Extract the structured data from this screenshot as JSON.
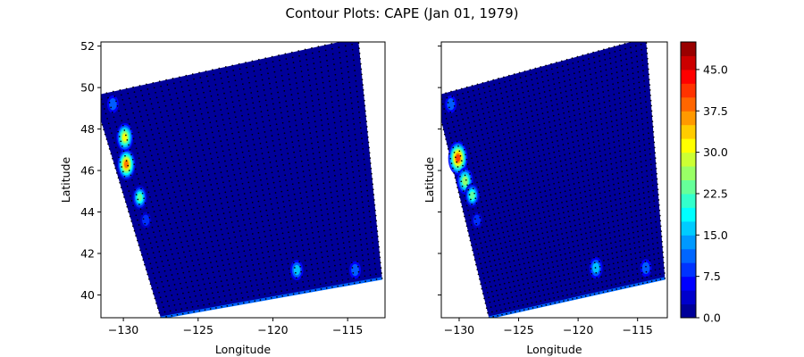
{
  "figure": {
    "title": "Contour Plots: CAPE (Jan 01, 1979)"
  },
  "chart_data": [
    {
      "type": "heatmap",
      "panel": "left",
      "xlabel": "Longitude",
      "ylabel": "Latitude",
      "xlim": [
        -131.5,
        -112.5
      ],
      "ylim": [
        38.9,
        52.2
      ],
      "xticks": [
        -130,
        -125,
        -120,
        -115
      ],
      "xtick_labels": [
        "−130",
        "−125",
        "−120",
        "−115"
      ],
      "yticks": [
        40,
        42,
        44,
        46,
        48,
        50,
        52
      ],
      "ytick_labels": [
        "40",
        "42",
        "44",
        "46",
        "48",
        "50",
        "52"
      ],
      "domain_corners": [
        [
          -132.0,
          49.6
        ],
        [
          -127.5,
          38.9
        ],
        [
          -112.7,
          40.8
        ],
        [
          -114.3,
          52.4
        ]
      ],
      "background_value": 0,
      "grid_points_overlay": true,
      "features": [
        {
          "lon": -129.8,
          "lat": 46.3,
          "value": 37.5
        },
        {
          "lon": -129.9,
          "lat": 47.6,
          "value": 30
        },
        {
          "lon": -128.9,
          "lat": 44.7,
          "value": 22.5
        },
        {
          "lon": -130.7,
          "lat": 49.2,
          "value": 10
        },
        {
          "lon": -118.4,
          "lat": 41.2,
          "value": 15
        },
        {
          "lon": -114.5,
          "lat": 41.2,
          "value": 10
        },
        {
          "lon": -128.5,
          "lat": 43.6,
          "value": 7.5
        }
      ]
    },
    {
      "type": "heatmap",
      "panel": "right",
      "xlabel": "Longitude",
      "ylabel": "Latitude",
      "xlim": [
        -131.5,
        -112.5
      ],
      "ylim": [
        38.9,
        52.2
      ],
      "xticks": [
        -130,
        -125,
        -120,
        -115
      ],
      "xtick_labels": [
        "−130",
        "−125",
        "−120",
        "−115"
      ],
      "yticks": [
        40,
        42,
        44,
        46,
        48,
        50,
        52
      ],
      "ytick_labels": [],
      "domain_corners": [
        [
          -132.0,
          49.6
        ],
        [
          -127.5,
          38.9
        ],
        [
          -112.7,
          40.8
        ],
        [
          -114.3,
          52.4
        ]
      ],
      "background_value": 0,
      "grid_points_overlay": true,
      "features": [
        {
          "lon": -130.1,
          "lat": 46.6,
          "value": 40
        },
        {
          "lon": -129.5,
          "lat": 45.5,
          "value": 27
        },
        {
          "lon": -128.9,
          "lat": 44.8,
          "value": 22.5
        },
        {
          "lon": -130.7,
          "lat": 49.2,
          "value": 10
        },
        {
          "lon": -118.5,
          "lat": 41.3,
          "value": 17
        },
        {
          "lon": -114.3,
          "lat": 41.3,
          "value": 10
        },
        {
          "lon": -128.5,
          "lat": 43.6,
          "value": 7.5
        }
      ]
    }
  ],
  "colorbar": {
    "vmin": 0,
    "vmax": 50,
    "levels": [
      0,
      2.5,
      5,
      7.5,
      10,
      12.5,
      15,
      17.5,
      20,
      22.5,
      25,
      27.5,
      30,
      32.5,
      35,
      37.5,
      40,
      42.5,
      45,
      47.5,
      50
    ],
    "ticks": [
      0,
      7.5,
      15,
      22.5,
      30,
      37.5,
      45
    ],
    "tick_labels": [
      "0.0",
      "7.5",
      "15.0",
      "22.5",
      "30.0",
      "37.5",
      "45.0"
    ],
    "colormap": "jet"
  }
}
